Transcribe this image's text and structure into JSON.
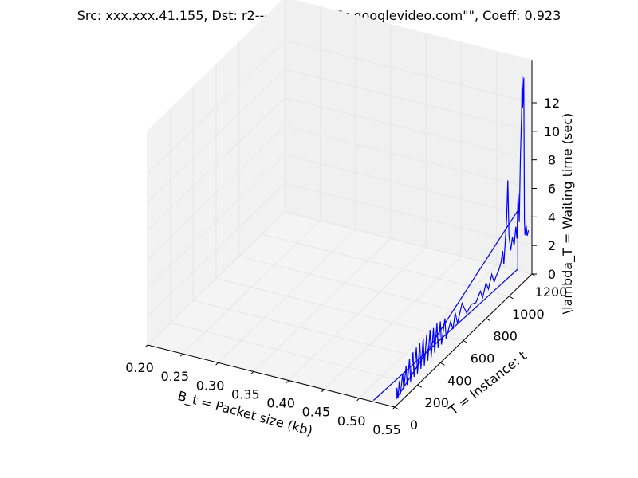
{
  "chart_data": {
    "type": "line",
    "projection": "3d",
    "title": "Src: xxx.xxx.41.155, Dst: r2---sn-n4v7sn7z.googlevideo.com\"\", Coeff: 0.923",
    "xlabel": "B_t = Packet size (kb)",
    "ylabel": "T = Instance: t",
    "zlabel": "\\lambda_T = Waiting time (sec)",
    "xlim": [
      0.2,
      0.55
    ],
    "ylim": [
      0,
      1200
    ],
    "zlim": [
      0,
      12
    ],
    "xticks": [
      "0.20",
      "0.25",
      "0.30",
      "0.35",
      "0.40",
      "0.45",
      "0.50",
      "0.55"
    ],
    "yticks": [
      "0",
      "200",
      "400",
      "600",
      "800",
      "1000",
      "1200"
    ],
    "zticks": [
      "0",
      "2",
      "4",
      "6",
      "8",
      "10",
      "12"
    ],
    "grid": true,
    "series_color": "#0000ff",
    "series": [
      {
        "note_points": "approximate trace of the blue line: [x (kb), t, z (sec)]",
        "points": [
          [
            0.52,
            0,
            0.1
          ],
          [
            0.53,
            1200,
            0.1
          ],
          [
            0.53,
            1200,
            4.2
          ],
          [
            0.545,
            50,
            0.2
          ],
          [
            0.545,
            50,
            0.9
          ],
          [
            0.545,
            60,
            0.1
          ],
          [
            0.545,
            70,
            1.2
          ],
          [
            0.545,
            80,
            0.2
          ],
          [
            0.545,
            100,
            1.5
          ],
          [
            0.545,
            110,
            0.3
          ],
          [
            0.545,
            130,
            1.8
          ],
          [
            0.545,
            140,
            0.4
          ],
          [
            0.545,
            160,
            2.1
          ],
          [
            0.545,
            170,
            0.4
          ],
          [
            0.545,
            190,
            2.3
          ],
          [
            0.545,
            200,
            0.5
          ],
          [
            0.545,
            220,
            2.4
          ],
          [
            0.545,
            230,
            0.5
          ],
          [
            0.545,
            250,
            2.5
          ],
          [
            0.545,
            260,
            0.6
          ],
          [
            0.545,
            280,
            2.6
          ],
          [
            0.545,
            290,
            0.6
          ],
          [
            0.545,
            310,
            2.6
          ],
          [
            0.545,
            320,
            0.7
          ],
          [
            0.545,
            340,
            2.7
          ],
          [
            0.545,
            350,
            0.7
          ],
          [
            0.545,
            370,
            2.6
          ],
          [
            0.545,
            380,
            0.8
          ],
          [
            0.545,
            400,
            2.7
          ],
          [
            0.545,
            410,
            0.9
          ],
          [
            0.545,
            430,
            2.6
          ],
          [
            0.545,
            440,
            0.9
          ],
          [
            0.545,
            470,
            2.5
          ],
          [
            0.545,
            480,
            1.0
          ],
          [
            0.545,
            520,
            1.9
          ],
          [
            0.545,
            540,
            1.2
          ],
          [
            0.545,
            560,
            2.2
          ],
          [
            0.545,
            580,
            1.3
          ],
          [
            0.545,
            620,
            2.4
          ],
          [
            0.545,
            660,
            1.4
          ],
          [
            0.545,
            700,
            1.7
          ],
          [
            0.545,
            740,
            1.5
          ],
          [
            0.545,
            780,
            2.0
          ],
          [
            0.545,
            800,
            1.4
          ],
          [
            0.545,
            830,
            2.2
          ],
          [
            0.545,
            850,
            1.6
          ],
          [
            0.545,
            880,
            2.4
          ],
          [
            0.545,
            900,
            1.7
          ],
          [
            0.545,
            920,
            2.0
          ],
          [
            0.545,
            940,
            2.2
          ],
          [
            0.545,
            960,
            2.6
          ],
          [
            0.545,
            975,
            3.3
          ],
          [
            0.545,
            985,
            2.3
          ],
          [
            0.545,
            995,
            3.5
          ],
          [
            0.545,
            1010,
            5.3
          ],
          [
            0.545,
            1020,
            7.9
          ],
          [
            0.545,
            1030,
            4.0
          ],
          [
            0.545,
            1045,
            2.8
          ],
          [
            0.545,
            1060,
            3.6
          ],
          [
            0.545,
            1075,
            2.9
          ],
          [
            0.545,
            1090,
            4.1
          ],
          [
            0.545,
            1100,
            3.2
          ],
          [
            0.545,
            1110,
            6.3
          ],
          [
            0.545,
            1120,
            4.2
          ],
          [
            0.545,
            1130,
            8.5
          ],
          [
            0.545,
            1140,
            11.5
          ],
          [
            0.545,
            1145,
            14.2
          ],
          [
            0.545,
            1150,
            12.0
          ],
          [
            0.545,
            1160,
            14.0
          ],
          [
            0.545,
            1165,
            4.0
          ],
          [
            0.545,
            1170,
            2.9
          ],
          [
            0.545,
            1180,
            3.5
          ],
          [
            0.545,
            1190,
            2.7
          ],
          [
            0.545,
            1200,
            3.0
          ]
        ]
      }
    ]
  }
}
